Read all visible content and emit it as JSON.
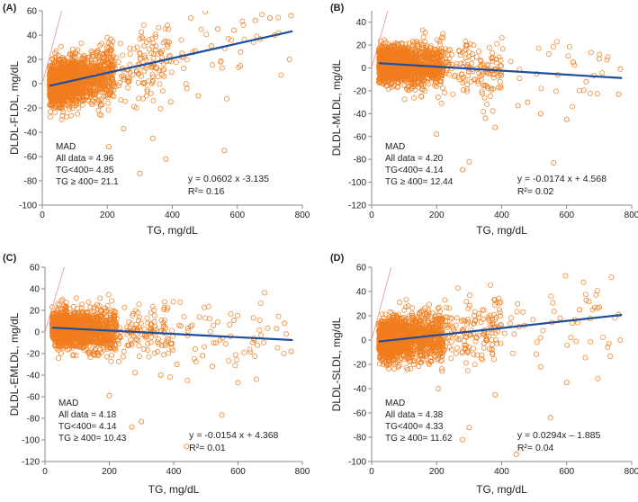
{
  "colors": {
    "points": "#f07d1e",
    "regression": "#1f4e9a",
    "identity": "#e6a0a8",
    "axis": "#888888"
  },
  "chart_data": [
    {
      "type": "scatter",
      "panel_label": "(A)",
      "xlabel": "TG, mg/dL",
      "ylabel": "DLDL-FLDL, mg/dL",
      "xlim": [
        0,
        800
      ],
      "ylim": [
        -100,
        60
      ],
      "xticks": [
        "0",
        "200",
        "400",
        "600",
        "800"
      ],
      "yticks": [
        "-100",
        "-80",
        "-60",
        "-40",
        "-20",
        "0",
        "20",
        "40",
        "60"
      ],
      "regression": {
        "slope": 0.0602,
        "intercept": -3.135,
        "equation": "y = 0.0602  x -3.135",
        "r2": "R²= 0.16"
      },
      "mad": {
        "title": "MAD",
        "all": "All data = 4.96",
        "lt400": "TG<400= 4.85",
        "ge400": "TG ≥ 400= 21.1"
      },
      "cloud": {
        "seed": 11,
        "slope": 0.0602,
        "intercept": -3.135,
        "spread": 10.5
      },
      "outliers": [
        [
          300,
          -74
        ],
        [
          560,
          -55
        ],
        [
          380,
          -62
        ],
        [
          205,
          -52
        ],
        [
          445,
          -4
        ],
        [
          480,
          -10
        ],
        [
          715,
          40
        ],
        [
          760,
          20
        ],
        [
          765,
          56
        ],
        [
          700,
          54
        ],
        [
          540,
          45
        ],
        [
          655,
          52
        ],
        [
          250,
          -37
        ],
        [
          340,
          -45
        ],
        [
          610,
          26
        ],
        [
          520,
          31
        ],
        [
          430,
          25
        ],
        [
          395,
          -15
        ],
        [
          470,
          27
        ],
        [
          660,
          39
        ],
        [
          590,
          44
        ]
      ]
    },
    {
      "type": "scatter",
      "panel_label": "(B)",
      "xlabel": "TG, mg/dL",
      "ylabel": "DLDL-MLDL, mg/dL",
      "xlim": [
        0,
        800
      ],
      "ylim": [
        -120,
        50
      ],
      "xticks": [
        "0",
        "200",
        "400",
        "600",
        "800"
      ],
      "yticks": [
        "-120",
        "-100",
        "-80",
        "-60",
        "-40",
        "-20",
        "0",
        "20",
        "40"
      ],
      "regression": {
        "slope": -0.0174,
        "intercept": 4.568,
        "equation": "y = -0.0174 x + 4.568",
        "r2": "R²= 0.02"
      },
      "mad": {
        "title": "MAD",
        "all": "All data = 4.20",
        "lt400": "TG<400= 4.14",
        "ge400": "TG ≥ 400= 12.44"
      },
      "cloud": {
        "seed": 23,
        "slope": -0.0174,
        "intercept": 4.568,
        "spread": 9
      },
      "outliers": [
        [
          560,
          -83
        ],
        [
          300,
          -82
        ],
        [
          280,
          -89
        ],
        [
          200,
          -58
        ],
        [
          520,
          -40
        ],
        [
          600,
          -45
        ],
        [
          700,
          8
        ],
        [
          765,
          -1
        ],
        [
          760,
          -23
        ],
        [
          620,
          5
        ],
        [
          480,
          -30
        ],
        [
          380,
          -52
        ],
        [
          450,
          -33
        ],
        [
          660,
          -12
        ],
        [
          350,
          -44
        ]
      ]
    },
    {
      "type": "scatter",
      "panel_label": "(C)",
      "xlabel": "TG, mg/dL",
      "ylabel": "DLDL-EMLDL, mg/dL",
      "xlim": [
        0,
        800
      ],
      "ylim": [
        -120,
        60
      ],
      "xticks": [
        "0",
        "200",
        "400",
        "600",
        "800"
      ],
      "yticks": [
        "-120",
        "-100",
        "-80",
        "-60",
        "-40",
        "-20",
        "0",
        "20",
        "40",
        "60"
      ],
      "regression": {
        "slope": -0.0154,
        "intercept": 4.368,
        "equation": "y = -0.0154 x + 4.368",
        "r2": "R²= 0.01"
      },
      "mad": {
        "title": "MAD",
        "all": "All data = 4.18",
        "lt400": "TG<400= 4.14",
        "ge400": "TG ≥ 400= 10.43"
      },
      "cloud": {
        "seed": 37,
        "slope": -0.0154,
        "intercept": 4.368,
        "spread": 9
      },
      "outliers": [
        [
          440,
          -106
        ],
        [
          550,
          -77
        ],
        [
          300,
          -83
        ],
        [
          270,
          -88
        ],
        [
          200,
          -59
        ],
        [
          520,
          -32
        ],
        [
          600,
          -47
        ],
        [
          745,
          8
        ],
        [
          765,
          -18
        ],
        [
          720,
          3
        ],
        [
          490,
          -22
        ],
        [
          360,
          -40
        ],
        [
          650,
          -6
        ],
        [
          410,
          -30
        ]
      ]
    },
    {
      "type": "scatter",
      "panel_label": "(D)",
      "xlabel": "TG, mg/dL",
      "ylabel": "DLDL-SLDL, mg/dL",
      "xlim": [
        0,
        800
      ],
      "ylim": [
        -100,
        60
      ],
      "xticks": [
        "0",
        "200",
        "400",
        "600",
        "800"
      ],
      "yticks": [
        "-100",
        "-80",
        "-60",
        "-40",
        "-20",
        "0",
        "20",
        "40",
        "60"
      ],
      "regression": {
        "slope": 0.0294,
        "intercept": -1.885,
        "equation": "y = 0.0294x – 1.885",
        "r2": "R²= 0.04"
      },
      "mad": {
        "title": "MAD",
        "all": "All data = 4.38",
        "lt400": "TG<400= 4.33",
        "ge400": "TG ≥ 400= 11.62"
      },
      "cloud": {
        "seed": 51,
        "slope": 0.0294,
        "intercept": -1.885,
        "spread": 9.5
      },
      "outliers": [
        [
          445,
          -94
        ],
        [
          550,
          -64
        ],
        [
          300,
          -72
        ],
        [
          280,
          -82
        ],
        [
          205,
          -40
        ],
        [
          600,
          -35
        ],
        [
          765,
          0
        ],
        [
          700,
          27
        ],
        [
          760,
          21
        ],
        [
          640,
          25
        ],
        [
          520,
          -22
        ],
        [
          380,
          -45
        ],
        [
          470,
          12
        ],
        [
          580,
          18
        ]
      ]
    }
  ]
}
